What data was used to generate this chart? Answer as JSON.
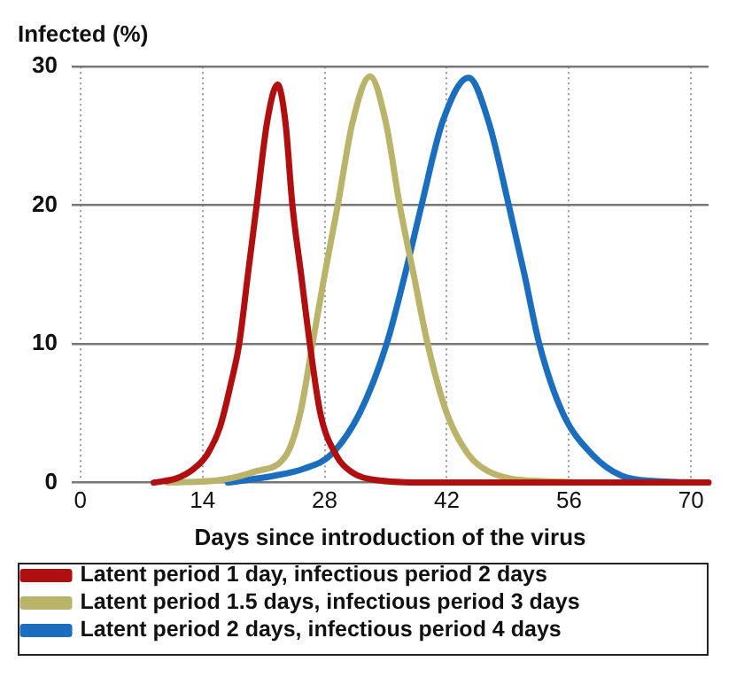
{
  "chart_data": {
    "type": "line",
    "xlabel": "Days since introduction of the virus",
    "ylabel": "Infected (%)",
    "xlim": [
      -1,
      72
    ],
    "xticks": [
      0,
      14,
      28,
      42,
      56,
      70
    ],
    "ylim": [
      0,
      30
    ],
    "yticks": [
      0,
      10,
      20,
      30
    ],
    "grid": true,
    "legend": "bottom",
    "marker": "none",
    "line_style": "solid",
    "series": [
      {
        "name": "Latent period 1 day, infectious period 2 days",
        "color": "#b00f10",
        "x": [
          8.4,
          11,
          13,
          14.5,
          16,
          17.2,
          18.2,
          19.2,
          20.2,
          21.4,
          22.6,
          23.5,
          24.3,
          25.3,
          26.3,
          27.5,
          29.3,
          31,
          33.7,
          40,
          50,
          60,
          72
        ],
        "values": [
          0,
          0.3,
          1,
          2,
          4,
          7,
          10,
          15,
          20,
          26,
          28.7,
          26,
          20,
          15,
          10,
          5,
          2,
          0.8,
          0.2,
          0,
          0,
          0,
          0
        ]
      },
      {
        "name": "Latent period 1.5 days, infectious period 3 days",
        "color": "#bab36a",
        "x": [
          10,
          16.2,
          20,
          23.6,
          25.2,
          26.6,
          28,
          29.5,
          31.2,
          33.2,
          35,
          36.6,
          38.2,
          39.8,
          42,
          44.5,
          46.8,
          49.2,
          53,
          58
        ],
        "values": [
          0,
          0.2,
          0.8,
          2,
          5,
          10,
          15,
          20,
          26,
          29.3,
          26,
          20,
          15,
          10,
          5,
          2,
          0.8,
          0.3,
          0.1,
          0
        ]
      },
      {
        "name": "Latent period 2 days, infectious period 4 days",
        "color": "#1a6ebd",
        "x": [
          16.9,
          22.3,
          25.6,
          28.7,
          32,
          35.1,
          37.2,
          39.1,
          41.5,
          44.5,
          46.8,
          49.1,
          50.9,
          52.6,
          55.3,
          58.7,
          62,
          66,
          71.5
        ],
        "values": [
          0,
          0.5,
          1,
          2,
          5,
          10,
          15,
          20,
          26,
          29.2,
          26,
          20,
          15,
          10,
          5,
          2,
          0.5,
          0.1,
          0
        ]
      }
    ]
  }
}
